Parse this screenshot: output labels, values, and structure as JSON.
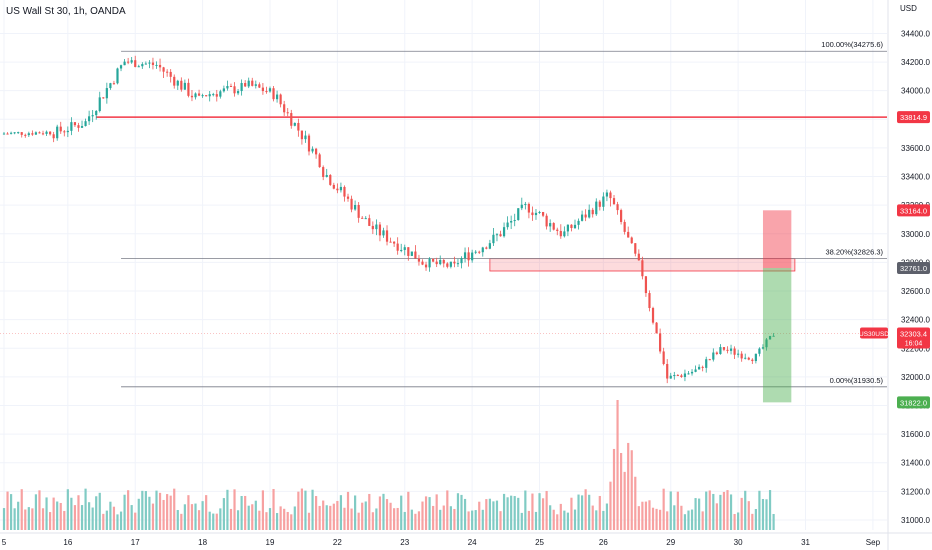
{
  "chart_data": {
    "type": "candlestick",
    "title": "US Wall St 30, 1h, OANDA",
    "currency": "USD",
    "symbol": "US30USD",
    "countdown": "16:04",
    "y_range": [
      30930,
      34480
    ],
    "y_ticks": [
      31000,
      31200,
      31400,
      31600,
      31800,
      32000,
      32200,
      32400,
      32600,
      32800,
      33000,
      33200,
      33400,
      33600,
      33800,
      34000,
      34200,
      34400
    ],
    "y_tick_labels": [
      "31000.0",
      "31200.0",
      "31400.0",
      "31600.0",
      "31800.0",
      "32000.0",
      "32200.0",
      "32400.0",
      "32600.0",
      "32800.0",
      "33000.0",
      "33200.0",
      "33400.0",
      "33600.0",
      "33800.0",
      "34000.0",
      "34200.0",
      "34400.0"
    ],
    "x_labels": [
      {
        "label": "5",
        "t": 0
      },
      {
        "label": "16",
        "t": 18
      },
      {
        "label": "17",
        "t": 37
      },
      {
        "label": "18",
        "t": 56
      },
      {
        "label": "19",
        "t": 75
      },
      {
        "label": "22",
        "t": 94
      },
      {
        "label": "23",
        "t": 113
      },
      {
        "label": "24",
        "t": 132
      },
      {
        "label": "25",
        "t": 151
      },
      {
        "label": "26",
        "t": 169
      },
      {
        "label": "29",
        "t": 188
      },
      {
        "label": "30",
        "t": 207
      },
      {
        "label": "31",
        "t": 226
      },
      {
        "label": "Sep",
        "t": 245
      }
    ],
    "x_range": [
      0,
      247
    ],
    "fib_levels": [
      {
        "label": "100.00%(34275.6)",
        "price": 34275.6,
        "from_t": 33
      },
      {
        "label": "38.20%(32826.3)",
        "price": 32826.3,
        "from_t": 33
      },
      {
        "label": "0.00%(31930.5)",
        "price": 31930.5,
        "from_t": 33
      }
    ],
    "horizontal_line": {
      "price": 33814.9,
      "label": "33814.9",
      "from_t": 26,
      "color": "#f23645"
    },
    "zone": {
      "top": 32826.3,
      "bottom": 32740,
      "from_t": 137,
      "to_t": 223
    },
    "position": {
      "from_t": 214,
      "to_t": 222,
      "stop": 33164.0,
      "entry": 32761.0,
      "target": 31822.0
    },
    "price_tags": [
      {
        "label": "33814.9",
        "price": 33814.9,
        "color": "#f23645"
      },
      {
        "label": "33164.0",
        "price": 33164.0,
        "color": "#f23645"
      },
      {
        "label": "32761.0",
        "price": 32761.0,
        "color": "#5d606b"
      },
      {
        "label": "31822.0",
        "price": 31822.0,
        "color": "#4caf50"
      }
    ],
    "current_price": {
      "label": "32303.4",
      "price": 32303.4
    },
    "colors": {
      "up": "#26a69a",
      "down": "#ef5350",
      "vol_up": "#80cbc4",
      "vol_down": "#f7a1a1",
      "grid": "#f0f3fa",
      "axis_text": "#131722"
    },
    "volume_max": 1000,
    "series": {
      "start_t": 0,
      "path": [
        {
          "n": 14,
          "to": 33710,
          "jitter": 40
        },
        {
          "n": 10,
          "to": 33780,
          "jitter": 80
        },
        {
          "n": 11,
          "to": 34205,
          "jitter": 90
        },
        {
          "n": 9,
          "to": 34180,
          "jitter": 70
        },
        {
          "n": 12,
          "to": 33930,
          "jitter": 90
        },
        {
          "n": 12,
          "to": 34020,
          "jitter": 80
        },
        {
          "n": 8,
          "to": 33990,
          "jitter": 70
        },
        {
          "n": 14,
          "to": 33510,
          "jitter": 90
        },
        {
          "n": 14,
          "to": 33060,
          "jitter": 90
        },
        {
          "n": 14,
          "to": 32830,
          "jitter": 90
        },
        {
          "n": 10,
          "to": 32770,
          "jitter": 70
        },
        {
          "n": 10,
          "to": 32950,
          "jitter": 90
        },
        {
          "n": 10,
          "to": 33180,
          "jitter": 100
        },
        {
          "n": 10,
          "to": 33010,
          "jitter": 100
        },
        {
          "n": 13,
          "to": 33260,
          "jitter": 80
        },
        {
          "n": 1,
          "to": 33240,
          "jitter": 140
        },
        {
          "n": 9,
          "to": 32720,
          "jitter": 80
        },
        {
          "n": 7,
          "to": 31990,
          "jitter": 70
        },
        {
          "n": 9,
          "to": 32050,
          "jitter": 60
        },
        {
          "n": 7,
          "to": 32200,
          "jitter": 70
        },
        {
          "n": 8,
          "to": 32140,
          "jitter": 60
        },
        {
          "n": 6,
          "to": 32300,
          "jitter": 50
        }
      ]
    }
  }
}
